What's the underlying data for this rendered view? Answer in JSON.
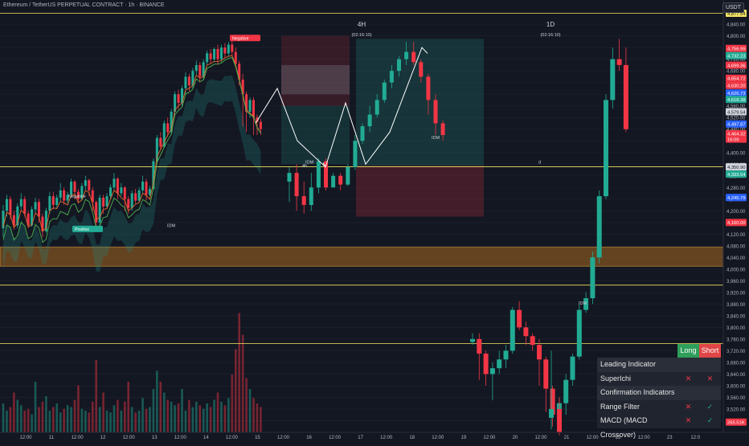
{
  "header": {
    "symbol_title": "Ethereum / TetherUS PERPETUAL CONTRACT · 1h · BINANCE",
    "currency": "USDT"
  },
  "timeframe_labels": [
    {
      "label": "4H",
      "countdown": "(02:16:10)"
    },
    {
      "label": "1D",
      "countdown": "(02:16:10)"
    }
  ],
  "chart_data": {
    "type": "candlestick",
    "symbol": "ETHUSDT.P",
    "interval": "1h",
    "ylim": [
      3440,
      4890
    ],
    "y_ticks": [
      3480,
      3520,
      3560,
      3600,
      3640,
      3680,
      3720,
      3760,
      3800,
      3840,
      3880,
      3920,
      3960,
      4000,
      4040,
      4080,
      4120,
      4160,
      4200,
      4240,
      4280,
      4320,
      4360,
      4400,
      4440,
      4480,
      4520,
      4560,
      4600,
      4640,
      4680,
      4720,
      4760,
      4800,
      4840
    ],
    "x_ticks": [
      "12:00",
      "11",
      "12:00",
      "12",
      "12:00",
      "13",
      "12:00",
      "14",
      "12:00",
      "15",
      "12:00",
      "16",
      "12:00",
      "17",
      "12:00",
      "18",
      "12:00",
      "19",
      "12:00",
      "20",
      "12:00",
      "21",
      "12:00",
      "22",
      "12:00",
      "23",
      "12:0"
    ],
    "candles": [
      [
        4140,
        4200,
        4110,
        4220
      ],
      [
        4200,
        4240,
        4180,
        4255
      ],
      [
        4240,
        4185,
        4170,
        4250
      ],
      [
        4185,
        4150,
        4135,
        4200
      ],
      [
        4150,
        4215,
        4140,
        4225
      ],
      [
        4215,
        4240,
        4205,
        4260
      ],
      [
        4240,
        4190,
        4180,
        4250
      ],
      [
        4190,
        4150,
        4140,
        4200
      ],
      [
        4150,
        4205,
        4145,
        4215
      ],
      [
        4205,
        4230,
        4195,
        4245
      ],
      [
        4230,
        4180,
        4160,
        4240
      ],
      [
        4180,
        4130,
        4110,
        4190
      ],
      [
        4130,
        4200,
        4125,
        4210
      ],
      [
        4200,
        4250,
        4190,
        4265
      ],
      [
        4250,
        4220,
        4205,
        4265
      ],
      [
        4220,
        4245,
        4210,
        4255
      ],
      [
        4245,
        4270,
        4230,
        4295
      ],
      [
        4270,
        4235,
        4220,
        4280
      ],
      [
        4235,
        4255,
        4225,
        4265
      ],
      [
        4255,
        4300,
        4245,
        4310
      ],
      [
        4300,
        4265,
        4240,
        4305
      ],
      [
        4265,
        4240,
        4225,
        4275
      ],
      [
        4240,
        4285,
        4235,
        4295
      ],
      [
        4285,
        4305,
        4270,
        4320
      ],
      [
        4305,
        4270,
        4250,
        4310
      ],
      [
        4270,
        4230,
        4200,
        4280
      ],
      [
        4230,
        4160,
        4130,
        4235
      ],
      [
        4160,
        4245,
        4150,
        4255
      ],
      [
        4245,
        4215,
        4190,
        4255
      ],
      [
        4215,
        4250,
        4210,
        4260
      ],
      [
        4250,
        4280,
        4240,
        4290
      ],
      [
        4280,
        4310,
        4270,
        4330
      ],
      [
        4310,
        4260,
        4240,
        4315
      ],
      [
        4260,
        4280,
        4250,
        4295
      ],
      [
        4280,
        4240,
        4200,
        4285
      ],
      [
        4240,
        4210,
        4190,
        4250
      ],
      [
        4210,
        4260,
        4200,
        4270
      ],
      [
        4260,
        4235,
        4225,
        4275
      ],
      [
        4235,
        4270,
        4230,
        4280
      ],
      [
        4270,
        4300,
        4260,
        4320
      ],
      [
        4300,
        4255,
        4235,
        4310
      ],
      [
        4255,
        4275,
        4250,
        4285
      ],
      [
        4275,
        4370,
        4270,
        4380
      ],
      [
        4370,
        4450,
        4360,
        4460
      ],
      [
        4450,
        4420,
        4410,
        4470
      ],
      [
        4420,
        4500,
        4415,
        4510
      ],
      [
        4500,
        4470,
        4455,
        4520
      ],
      [
        4470,
        4540,
        4460,
        4550
      ],
      [
        4540,
        4600,
        4530,
        4610
      ],
      [
        4600,
        4570,
        4550,
        4615
      ],
      [
        4570,
        4620,
        4560,
        4630
      ],
      [
        4620,
        4660,
        4600,
        4675
      ],
      [
        4660,
        4630,
        4610,
        4670
      ],
      [
        4630,
        4680,
        4620,
        4690
      ],
      [
        4680,
        4700,
        4665,
        4715
      ],
      [
        4700,
        4660,
        4640,
        4710
      ],
      [
        4660,
        4710,
        4650,
        4720
      ],
      [
        4710,
        4740,
        4700,
        4750
      ],
      [
        4740,
        4720,
        4705,
        4755
      ],
      [
        4720,
        4755,
        4710,
        4760
      ],
      [
        4755,
        4720,
        4700,
        4770
      ],
      [
        4720,
        4760,
        4710,
        4770
      ],
      [
        4760,
        4740,
        4725,
        4775
      ],
      [
        4740,
        4770,
        4730,
        4780
      ],
      [
        4770,
        4745,
        4730,
        4785
      ],
      [
        4745,
        4705,
        4695,
        4760
      ],
      [
        4705,
        4650,
        4630,
        4715
      ],
      [
        4650,
        4600,
        4490,
        4670
      ],
      [
        4600,
        4540,
        4470,
        4610
      ],
      [
        4540,
        4580,
        4520,
        4590
      ],
      [
        4580,
        4520,
        4460,
        4590
      ],
      [
        4520,
        4505,
        4460,
        4530
      ],
      [
        4505,
        4480,
        4460,
        4515
      ]
    ],
    "volumes": [
      80,
      60,
      70,
      110,
      90,
      75,
      60,
      65,
      50,
      140,
      70,
      85,
      100,
      60,
      70,
      80,
      55,
      65,
      75,
      70,
      90,
      130,
      65,
      60,
      55,
      85,
      200,
      70,
      110,
      60,
      55,
      75,
      90,
      60,
      85,
      140,
      70,
      55,
      60,
      95,
      65,
      70,
      120,
      170,
      140,
      110,
      90,
      85,
      75,
      80,
      120,
      60,
      90,
      70,
      85,
      75,
      65,
      80,
      70,
      90,
      110,
      85,
      75,
      95,
      160,
      230,
      330,
      270,
      150,
      120,
      95,
      80,
      70
    ],
    "candles_4h": [
      [
        4300,
        4330,
        4230,
        4350
      ],
      [
        4330,
        4250,
        4200,
        4360
      ],
      [
        4250,
        4220,
        4190,
        4300
      ],
      [
        4220,
        4280,
        4200,
        4330
      ],
      [
        4280,
        4370,
        4260,
        4380
      ],
      [
        4370,
        4280,
        4270,
        4380
      ],
      [
        4280,
        4320,
        4280,
        4330
      ],
      [
        4320,
        4290,
        4270,
        4330
      ],
      [
        4290,
        4350,
        4285,
        4360
      ],
      [
        4350,
        4440,
        4340,
        4460
      ],
      [
        4440,
        4490,
        4430,
        4500
      ],
      [
        4490,
        4530,
        4470,
        4560
      ],
      [
        4530,
        4580,
        4520,
        4600
      ],
      [
        4580,
        4640,
        4570,
        4650
      ],
      [
        4640,
        4680,
        4620,
        4700
      ],
      [
        4680,
        4720,
        4660,
        4730
      ],
      [
        4720,
        4745,
        4700,
        4780
      ],
      [
        4745,
        4710,
        4700,
        4780
      ],
      [
        4710,
        4660,
        4640,
        4720
      ],
      [
        4660,
        4580,
        4530,
        4670
      ],
      [
        4580,
        4500,
        4460,
        4600
      ],
      [
        4500,
        4460,
        4440,
        4510
      ]
    ],
    "candles_1d": [
      [
        3750,
        3760,
        3740,
        3780
      ],
      [
        3760,
        3710,
        3620,
        3780
      ],
      [
        3710,
        3640,
        3600,
        3720
      ],
      [
        3640,
        3660,
        3550,
        3680
      ],
      [
        3660,
        3690,
        3640,
        3720
      ],
      [
        3690,
        3720,
        3660,
        3740
      ],
      [
        3720,
        3860,
        3710,
        3870
      ],
      [
        3860,
        3800,
        3790,
        3890
      ],
      [
        3800,
        3770,
        3740,
        3820
      ],
      [
        3770,
        3740,
        3720,
        3780
      ],
      [
        3740,
        3690,
        3600,
        3760
      ],
      [
        3690,
        3590,
        3510,
        3700
      ],
      [
        3590,
        3500,
        3460,
        3600
      ],
      [
        3500,
        3540,
        3460,
        3560
      ],
      [
        3540,
        3620,
        3500,
        3640
      ],
      [
        3620,
        3700,
        3600,
        3710
      ],
      [
        3700,
        3860,
        3690,
        3880
      ],
      [
        3860,
        3900,
        3850,
        3920
      ],
      [
        3900,
        4040,
        3880,
        4060
      ],
      [
        4040,
        4250,
        4020,
        4270
      ],
      [
        4250,
        4580,
        4240,
        4600
      ],
      [
        4580,
        4720,
        4550,
        4760
      ],
      [
        4720,
        4700,
        4680,
        4790
      ],
      [
        4700,
        4480,
        4470,
        4760
      ]
    ],
    "candles_1d_right": [
      [
        3490,
        3520,
        3450,
        3720
      ],
      [
        3520,
        3440,
        3430,
        3560
      ]
    ],
    "horizontal_levels": [
      {
        "price": 4877.54,
        "color": "#f5e663"
      },
      {
        "price": 4350.9,
        "color": "#f5e663"
      },
      {
        "price": 3945,
        "color": "#f5e663"
      },
      {
        "price": 3745,
        "color": "#f5e663"
      }
    ],
    "zone": {
      "from": 4010,
      "to": 4075,
      "color": "#c87a1e"
    },
    "price_labels": [
      {
        "value": "4,877.54",
        "bg": "#f5e663",
        "fg": "#131722",
        "price": 4877.54
      },
      {
        "value": "4,756.99",
        "bg": "#f23645",
        "fg": "#ffffff",
        "price": 4756.99
      },
      {
        "value": "4,732.23",
        "bg": "#22ab94",
        "fg": "#ffffff",
        "price": 4732.23
      },
      {
        "value": "4,699.36",
        "bg": "#f23645",
        "fg": "#ffffff",
        "price": 4699.36
      },
      {
        "value": "4,654.72",
        "bg": "#f23645",
        "fg": "#ffffff",
        "price": 4654.72
      },
      {
        "value": "4,630.20",
        "bg": "#f23645",
        "fg": "#ffffff",
        "price": 4630.2
      },
      {
        "value": "4,626.73",
        "bg": "#2962ff",
        "fg": "#ffffff",
        "price": 4604
      },
      {
        "value": "4,618.38",
        "bg": "#22ab94",
        "fg": "#ffffff",
        "price": 4582
      },
      {
        "value": "4,579.54",
        "bg": "#d1d4dc",
        "fg": "#131722",
        "price": 4540
      },
      {
        "value": "4,497.87",
        "bg": "#2962ff",
        "fg": "#ffffff",
        "price": 4497.87
      },
      {
        "value": "4,464.32",
        "bg": "#f23645",
        "fg": "#ffffff",
        "price": 4464.32
      },
      {
        "value": "16:09",
        "bg": "#f23645",
        "fg": "#ffffff",
        "price": 4446
      },
      {
        "value": "4,350.90",
        "bg": "#d1d4dc",
        "fg": "#131722",
        "price": 4350.9
      },
      {
        "value": "4,333.54",
        "bg": "#22ab94",
        "fg": "#ffffff",
        "price": 4326
      },
      {
        "value": "4,245.79",
        "bg": "#2962ff",
        "fg": "#ffffff",
        "price": 4245.79
      },
      {
        "value": "4,160.00",
        "bg": "#f23645",
        "fg": "#ffffff",
        "price": 4160
      },
      {
        "value": "265.51K",
        "bg": "#f23645",
        "fg": "#ffffff",
        "price": 3475
      }
    ],
    "annotations": [
      {
        "text": "Negative",
        "price": 4790
      },
      {
        "text": "Positive",
        "price": 4135
      },
      {
        "text": "Negative",
        "price": 4250
      },
      {
        "text": "IDM",
        "price": 4150
      },
      {
        "text": "IDM",
        "price": 4368
      },
      {
        "text": "4h",
        "price": 4355
      },
      {
        "text": "IDM",
        "price": 4452
      },
      {
        "text": "IDM",
        "price": 3884
      },
      {
        "text": "d",
        "price": 4368
      }
    ]
  },
  "indicator_panel": {
    "long_label": "Long",
    "short_label": "Short",
    "rows": [
      {
        "label": "Leading Indicator",
        "type": "section"
      },
      {
        "label": "SuperIchi",
        "long": "✕",
        "short": "✕",
        "long_ok": false,
        "short_ok": false
      },
      {
        "label": "Confirmation Indicators",
        "type": "section"
      },
      {
        "label": "Range Filter",
        "long": "✕",
        "short": "✓",
        "long_ok": false,
        "short_ok": true
      },
      {
        "label": "MACD (MACD Crossover)",
        "long": "✕",
        "short": "✓",
        "long_ok": false,
        "short_ok": true
      }
    ]
  }
}
